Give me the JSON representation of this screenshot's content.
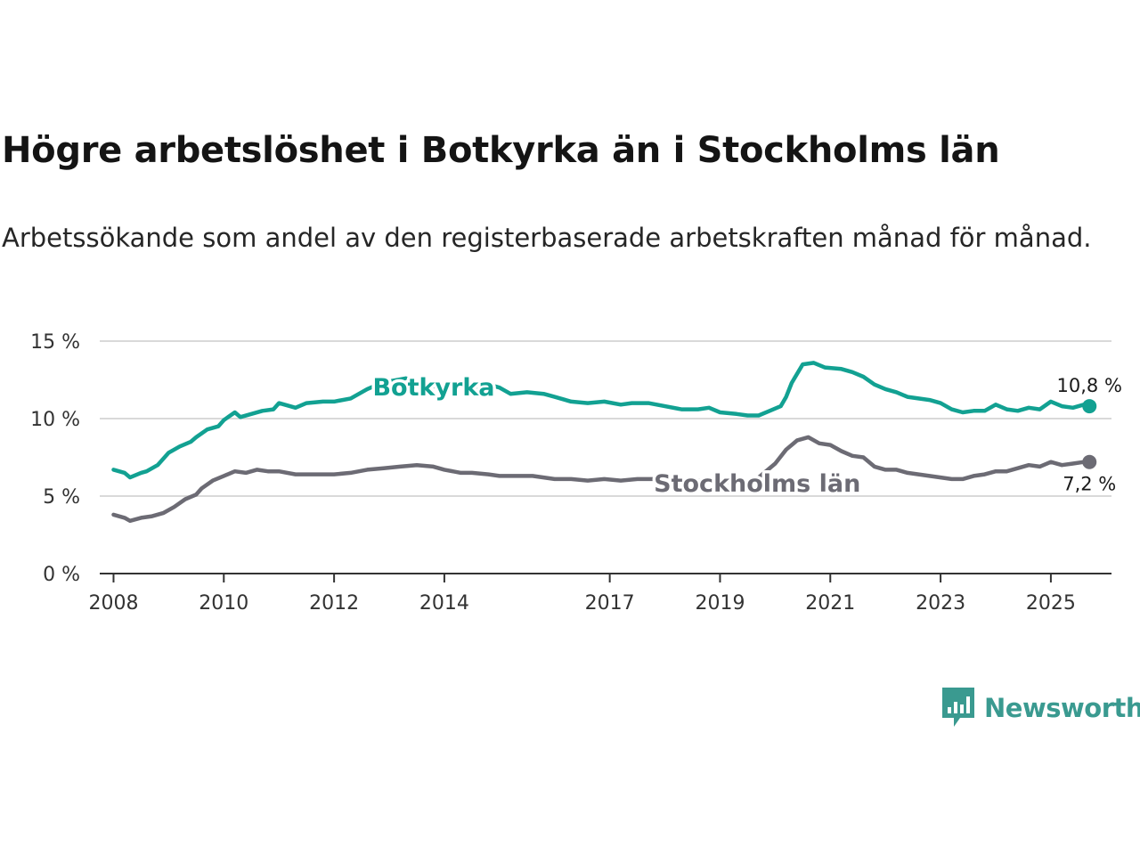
{
  "title": "Högre arbetslöshet i Botkyrka än i Stockholms län",
  "subtitle": "Arbetssökande som andel av den registerbaserade arbetskraften månad för månad.",
  "brand": {
    "name": "Newsworthy",
    "icon": "newsworthy-logo-icon"
  },
  "colors": {
    "botkyrka": "#12a192",
    "stockholm": "#6c6b74",
    "grid": "#d9d9d9",
    "axis": "#333333",
    "brand": "#3a9a90"
  },
  "chart_data": {
    "type": "line",
    "title": "Högre arbetslöshet i Botkyrka än i Stockholms län",
    "xlabel": "",
    "ylabel": "",
    "xlim": [
      2007.75,
      2026.1
    ],
    "ylim": [
      0,
      15
    ],
    "y_ticks": [
      0,
      5,
      10,
      15
    ],
    "y_tick_labels": [
      "0 %",
      "5 %",
      "10 %",
      "15 %"
    ],
    "x_ticks": [
      2008,
      2010,
      2012,
      2014,
      2017,
      2019,
      2021,
      2023,
      2025
    ],
    "x_tick_labels": [
      "2008",
      "2010",
      "2012",
      "2014",
      "2017",
      "2019",
      "2021",
      "2023",
      "2025"
    ],
    "grid": true,
    "series": [
      {
        "name": "Botkyrka",
        "label": "Botkyrka",
        "end_label": "10,8 %",
        "points": [
          [
            2008.0,
            6.7
          ],
          [
            2008.2,
            6.5
          ],
          [
            2008.3,
            6.2
          ],
          [
            2008.5,
            6.5
          ],
          [
            2008.6,
            6.6
          ],
          [
            2008.8,
            7.0
          ],
          [
            2009.0,
            7.8
          ],
          [
            2009.2,
            8.2
          ],
          [
            2009.4,
            8.5
          ],
          [
            2009.5,
            8.8
          ],
          [
            2009.7,
            9.3
          ],
          [
            2009.9,
            9.5
          ],
          [
            2010.0,
            9.9
          ],
          [
            2010.2,
            10.4
          ],
          [
            2010.3,
            10.1
          ],
          [
            2010.5,
            10.3
          ],
          [
            2010.7,
            10.5
          ],
          [
            2010.9,
            10.6
          ],
          [
            2011.0,
            11.0
          ],
          [
            2011.3,
            10.7
          ],
          [
            2011.5,
            11.0
          ],
          [
            2011.8,
            11.1
          ],
          [
            2012.0,
            11.1
          ],
          [
            2012.3,
            11.3
          ],
          [
            2012.6,
            11.9
          ],
          [
            2012.8,
            12.2
          ],
          [
            2013.0,
            12.4
          ],
          [
            2013.3,
            12.6
          ],
          [
            2013.6,
            12.3
          ],
          [
            2013.9,
            12.0
          ],
          [
            2014.2,
            12.3
          ],
          [
            2014.5,
            12.0
          ],
          [
            2014.8,
            12.2
          ],
          [
            2015.0,
            12.0
          ],
          [
            2015.2,
            11.6
          ],
          [
            2015.5,
            11.7
          ],
          [
            2015.8,
            11.6
          ],
          [
            2016.0,
            11.4
          ],
          [
            2016.3,
            11.1
          ],
          [
            2016.6,
            11.0
          ],
          [
            2016.9,
            11.1
          ],
          [
            2017.2,
            10.9
          ],
          [
            2017.4,
            11.0
          ],
          [
            2017.7,
            11.0
          ],
          [
            2018.0,
            10.8
          ],
          [
            2018.3,
            10.6
          ],
          [
            2018.6,
            10.6
          ],
          [
            2018.8,
            10.7
          ],
          [
            2019.0,
            10.4
          ],
          [
            2019.3,
            10.3
          ],
          [
            2019.5,
            10.2
          ],
          [
            2019.7,
            10.2
          ],
          [
            2019.9,
            10.5
          ],
          [
            2020.1,
            10.8
          ],
          [
            2020.2,
            11.4
          ],
          [
            2020.3,
            12.3
          ],
          [
            2020.5,
            13.5
          ],
          [
            2020.7,
            13.6
          ],
          [
            2020.9,
            13.3
          ],
          [
            2021.2,
            13.2
          ],
          [
            2021.4,
            13.0
          ],
          [
            2021.6,
            12.7
          ],
          [
            2021.8,
            12.2
          ],
          [
            2022.0,
            11.9
          ],
          [
            2022.2,
            11.7
          ],
          [
            2022.4,
            11.4
          ],
          [
            2022.6,
            11.3
          ],
          [
            2022.8,
            11.2
          ],
          [
            2023.0,
            11.0
          ],
          [
            2023.2,
            10.6
          ],
          [
            2023.4,
            10.4
          ],
          [
            2023.6,
            10.5
          ],
          [
            2023.8,
            10.5
          ],
          [
            2024.0,
            10.9
          ],
          [
            2024.2,
            10.6
          ],
          [
            2024.4,
            10.5
          ],
          [
            2024.6,
            10.7
          ],
          [
            2024.8,
            10.6
          ],
          [
            2025.0,
            11.1
          ],
          [
            2025.2,
            10.8
          ],
          [
            2025.4,
            10.7
          ],
          [
            2025.6,
            10.9
          ],
          [
            2025.7,
            10.8
          ]
        ]
      },
      {
        "name": "Stockholms län",
        "label": "Stockholms län",
        "end_label": "7,2 %",
        "points": [
          [
            2008.0,
            3.8
          ],
          [
            2008.2,
            3.6
          ],
          [
            2008.3,
            3.4
          ],
          [
            2008.5,
            3.6
          ],
          [
            2008.7,
            3.7
          ],
          [
            2008.9,
            3.9
          ],
          [
            2009.1,
            4.3
          ],
          [
            2009.3,
            4.8
          ],
          [
            2009.5,
            5.1
          ],
          [
            2009.6,
            5.5
          ],
          [
            2009.8,
            6.0
          ],
          [
            2010.0,
            6.3
          ],
          [
            2010.2,
            6.6
          ],
          [
            2010.4,
            6.5
          ],
          [
            2010.6,
            6.7
          ],
          [
            2010.8,
            6.6
          ],
          [
            2011.0,
            6.6
          ],
          [
            2011.3,
            6.4
          ],
          [
            2011.5,
            6.4
          ],
          [
            2011.8,
            6.4
          ],
          [
            2012.0,
            6.4
          ],
          [
            2012.3,
            6.5
          ],
          [
            2012.6,
            6.7
          ],
          [
            2012.9,
            6.8
          ],
          [
            2013.2,
            6.9
          ],
          [
            2013.5,
            7.0
          ],
          [
            2013.8,
            6.9
          ],
          [
            2014.0,
            6.7
          ],
          [
            2014.3,
            6.5
          ],
          [
            2014.5,
            6.5
          ],
          [
            2014.8,
            6.4
          ],
          [
            2015.0,
            6.3
          ],
          [
            2015.3,
            6.3
          ],
          [
            2015.6,
            6.3
          ],
          [
            2016.0,
            6.1
          ],
          [
            2016.3,
            6.1
          ],
          [
            2016.6,
            6.0
          ],
          [
            2016.9,
            6.1
          ],
          [
            2017.2,
            6.0
          ],
          [
            2017.5,
            6.1
          ],
          [
            2017.8,
            6.1
          ],
          [
            2018.1,
            6.0
          ],
          [
            2018.4,
            6.0
          ],
          [
            2018.8,
            6.0
          ],
          [
            2019.1,
            5.9
          ],
          [
            2019.4,
            5.8
          ],
          [
            2019.7,
            6.2
          ],
          [
            2020.0,
            7.1
          ],
          [
            2020.2,
            8.0
          ],
          [
            2020.4,
            8.6
          ],
          [
            2020.6,
            8.8
          ],
          [
            2020.8,
            8.4
          ],
          [
            2021.0,
            8.3
          ],
          [
            2021.2,
            7.9
          ],
          [
            2021.4,
            7.6
          ],
          [
            2021.6,
            7.5
          ],
          [
            2021.8,
            6.9
          ],
          [
            2022.0,
            6.7
          ],
          [
            2022.2,
            6.7
          ],
          [
            2022.4,
            6.5
          ],
          [
            2022.6,
            6.4
          ],
          [
            2022.8,
            6.3
          ],
          [
            2023.0,
            6.2
          ],
          [
            2023.2,
            6.1
          ],
          [
            2023.4,
            6.1
          ],
          [
            2023.6,
            6.3
          ],
          [
            2023.8,
            6.4
          ],
          [
            2024.0,
            6.6
          ],
          [
            2024.2,
            6.6
          ],
          [
            2024.4,
            6.8
          ],
          [
            2024.6,
            7.0
          ],
          [
            2024.8,
            6.9
          ],
          [
            2025.0,
            7.2
          ],
          [
            2025.2,
            7.0
          ],
          [
            2025.4,
            7.1
          ],
          [
            2025.6,
            7.2
          ],
          [
            2025.7,
            7.2
          ]
        ]
      }
    ]
  }
}
